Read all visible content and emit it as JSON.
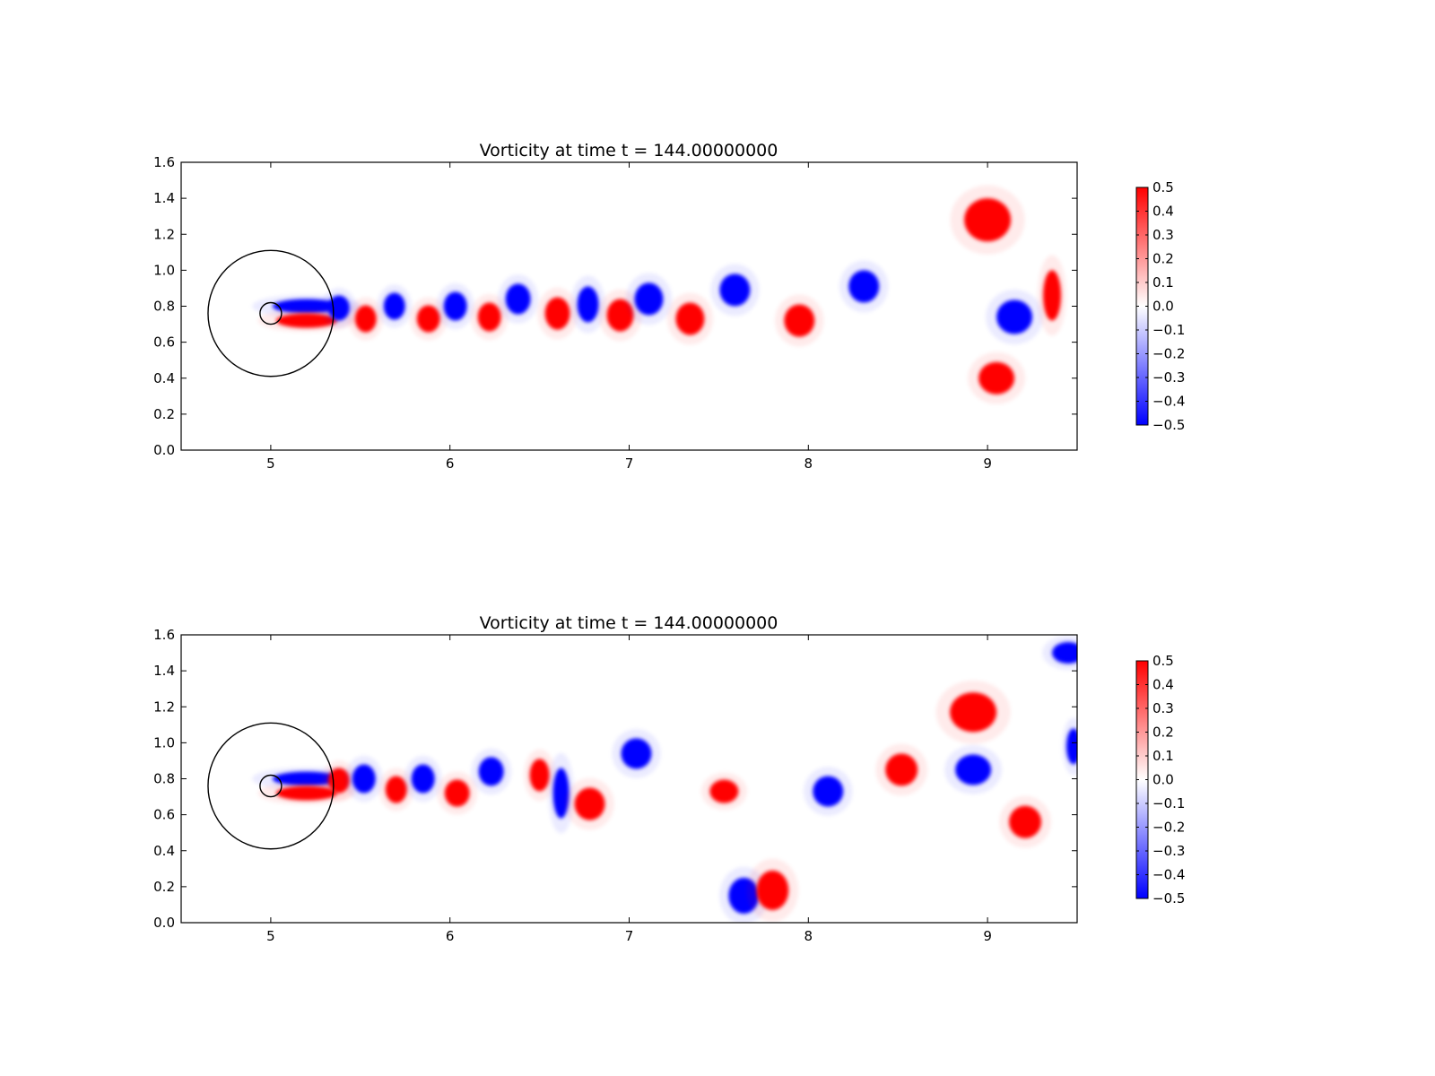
{
  "chart_data": [
    {
      "type": "heatmap",
      "title": "Vorticity at time t =   144.00000000",
      "xlim": [
        4.5,
        9.5
      ],
      "ylim": [
        0.0,
        1.6
      ],
      "xticks": [
        "5",
        "6",
        "7",
        "8",
        "9"
      ],
      "yticks": [
        "0.0",
        "0.2",
        "0.4",
        "0.6",
        "0.8",
        "1.0",
        "1.2",
        "1.4",
        "1.6"
      ],
      "colorbar": {
        "range": [
          -0.5,
          0.5
        ],
        "ticks": [
          "0.5",
          "0.4",
          "0.3",
          "0.2",
          "0.1",
          "0.0",
          "−0.1",
          "−0.2",
          "−0.3",
          "−0.4",
          "−0.5"
        ],
        "colors": {
          "low": "#0000ff",
          "mid": "#ffffff",
          "high": "#ff0000"
        }
      },
      "circles": [
        {
          "cx": 5.0,
          "cy": 0.76,
          "r": 0.35
        },
        {
          "cx": 5.0,
          "cy": 0.76,
          "r": 0.06
        }
      ],
      "vortices": [
        {
          "x": 5.2,
          "y": 0.8,
          "rx": 0.19,
          "ry": 0.04,
          "v": -0.5
        },
        {
          "x": 5.2,
          "y": 0.72,
          "rx": 0.17,
          "ry": 0.04,
          "v": 0.5
        },
        {
          "x": 5.38,
          "y": 0.79,
          "rx": 0.06,
          "ry": 0.07,
          "v": -0.5
        },
        {
          "x": 5.53,
          "y": 0.73,
          "rx": 0.06,
          "ry": 0.075,
          "v": 0.5
        },
        {
          "x": 5.69,
          "y": 0.8,
          "rx": 0.06,
          "ry": 0.075,
          "v": -0.5
        },
        {
          "x": 5.88,
          "y": 0.73,
          "rx": 0.065,
          "ry": 0.075,
          "v": 0.5
        },
        {
          "x": 6.03,
          "y": 0.8,
          "rx": 0.065,
          "ry": 0.08,
          "v": -0.5
        },
        {
          "x": 6.22,
          "y": 0.74,
          "rx": 0.065,
          "ry": 0.08,
          "v": 0.5
        },
        {
          "x": 6.38,
          "y": 0.84,
          "rx": 0.07,
          "ry": 0.085,
          "v": -0.5
        },
        {
          "x": 6.6,
          "y": 0.76,
          "rx": 0.07,
          "ry": 0.09,
          "v": 0.5
        },
        {
          "x": 6.77,
          "y": 0.81,
          "rx": 0.06,
          "ry": 0.1,
          "v": -0.5
        },
        {
          "x": 6.95,
          "y": 0.75,
          "rx": 0.075,
          "ry": 0.09,
          "v": 0.5
        },
        {
          "x": 7.11,
          "y": 0.84,
          "rx": 0.08,
          "ry": 0.09,
          "v": -0.5
        },
        {
          "x": 7.34,
          "y": 0.73,
          "rx": 0.08,
          "ry": 0.09,
          "v": 0.5
        },
        {
          "x": 7.59,
          "y": 0.89,
          "rx": 0.085,
          "ry": 0.09,
          "v": -0.5
        },
        {
          "x": 7.95,
          "y": 0.72,
          "rx": 0.085,
          "ry": 0.09,
          "v": 0.5
        },
        {
          "x": 8.31,
          "y": 0.91,
          "rx": 0.085,
          "ry": 0.09,
          "v": -0.5
        },
        {
          "x": 9.0,
          "y": 1.28,
          "rx": 0.13,
          "ry": 0.12,
          "v": 0.5
        },
        {
          "x": 9.05,
          "y": 0.4,
          "rx": 0.1,
          "ry": 0.09,
          "v": 0.5
        },
        {
          "x": 9.15,
          "y": 0.74,
          "rx": 0.1,
          "ry": 0.095,
          "v": -0.5
        },
        {
          "x": 9.36,
          "y": 0.86,
          "rx": 0.05,
          "ry": 0.14,
          "v": 0.5
        }
      ]
    },
    {
      "type": "heatmap",
      "title": "Vorticity at time t =   144.00000000",
      "xlim": [
        4.5,
        9.5
      ],
      "ylim": [
        0.0,
        1.6
      ],
      "xticks": [
        "5",
        "6",
        "7",
        "8",
        "9"
      ],
      "yticks": [
        "0.0",
        "0.2",
        "0.4",
        "0.6",
        "0.8",
        "1.0",
        "1.2",
        "1.4",
        "1.6"
      ],
      "colorbar": {
        "range": [
          -0.5,
          0.5
        ],
        "ticks": [
          "0.5",
          "0.4",
          "0.3",
          "0.2",
          "0.1",
          "0.0",
          "−0.1",
          "−0.2",
          "−0.3",
          "−0.4",
          "−0.5"
        ],
        "colors": {
          "low": "#0000ff",
          "mid": "#ffffff",
          "high": "#ff0000"
        }
      },
      "circles": [
        {
          "cx": 5.0,
          "cy": 0.76,
          "r": 0.35
        },
        {
          "cx": 5.0,
          "cy": 0.76,
          "r": 0.06
        }
      ],
      "vortices": [
        {
          "x": 5.2,
          "y": 0.8,
          "rx": 0.19,
          "ry": 0.04,
          "v": -0.5
        },
        {
          "x": 5.2,
          "y": 0.72,
          "rx": 0.17,
          "ry": 0.04,
          "v": 0.5
        },
        {
          "x": 5.38,
          "y": 0.79,
          "rx": 0.06,
          "ry": 0.07,
          "v": 0.5
        },
        {
          "x": 5.52,
          "y": 0.8,
          "rx": 0.065,
          "ry": 0.08,
          "v": -0.5
        },
        {
          "x": 5.7,
          "y": 0.74,
          "rx": 0.06,
          "ry": 0.075,
          "v": 0.5
        },
        {
          "x": 5.85,
          "y": 0.8,
          "rx": 0.065,
          "ry": 0.08,
          "v": -0.5
        },
        {
          "x": 6.04,
          "y": 0.72,
          "rx": 0.07,
          "ry": 0.075,
          "v": 0.5
        },
        {
          "x": 6.23,
          "y": 0.84,
          "rx": 0.07,
          "ry": 0.08,
          "v": -0.5
        },
        {
          "x": 6.5,
          "y": 0.82,
          "rx": 0.055,
          "ry": 0.09,
          "v": 0.5
        },
        {
          "x": 6.62,
          "y": 0.72,
          "rx": 0.045,
          "ry": 0.14,
          "v": -0.5
        },
        {
          "x": 6.78,
          "y": 0.66,
          "rx": 0.085,
          "ry": 0.09,
          "v": 0.5
        },
        {
          "x": 7.04,
          "y": 0.94,
          "rx": 0.085,
          "ry": 0.085,
          "v": -0.5
        },
        {
          "x": 7.53,
          "y": 0.73,
          "rx": 0.08,
          "ry": 0.065,
          "v": 0.5
        },
        {
          "x": 8.11,
          "y": 0.73,
          "rx": 0.085,
          "ry": 0.085,
          "v": -0.5
        },
        {
          "x": 8.52,
          "y": 0.85,
          "rx": 0.09,
          "ry": 0.09,
          "v": 0.5
        },
        {
          "x": 8.92,
          "y": 1.17,
          "rx": 0.13,
          "ry": 0.11,
          "v": 0.5
        },
        {
          "x": 8.92,
          "y": 0.85,
          "rx": 0.1,
          "ry": 0.085,
          "v": -0.5
        },
        {
          "x": 9.21,
          "y": 0.56,
          "rx": 0.09,
          "ry": 0.09,
          "v": 0.5
        },
        {
          "x": 7.64,
          "y": 0.15,
          "rx": 0.085,
          "ry": 0.1,
          "v": -0.5
        },
        {
          "x": 7.8,
          "y": 0.18,
          "rx": 0.09,
          "ry": 0.11,
          "v": 0.5
        },
        {
          "x": 9.45,
          "y": 1.5,
          "rx": 0.09,
          "ry": 0.06,
          "v": -0.5
        },
        {
          "x": 9.48,
          "y": 0.98,
          "rx": 0.04,
          "ry": 0.1,
          "v": -0.5
        }
      ]
    }
  ]
}
